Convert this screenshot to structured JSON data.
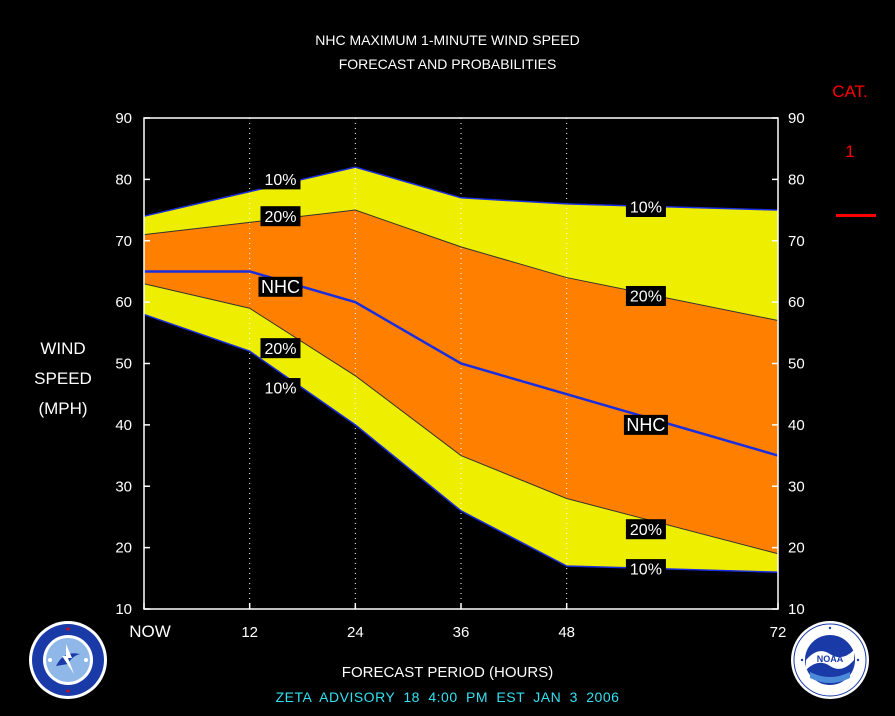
{
  "chart_data": {
    "type": "area",
    "title": "NHC MAXIMUM 1-MINUTE WIND SPEED",
    "subtitle": "FORECAST AND PROBABILITIES",
    "ylabel": [
      "WIND",
      "SPEED",
      "(MPH)"
    ],
    "xlabel": "FORECAST PERIOD (HOURS)",
    "ylim": [
      10,
      90
    ],
    "yticks": [
      10,
      20,
      30,
      40,
      50,
      60,
      70,
      80,
      90
    ],
    "xlim": [
      0,
      72
    ],
    "xticks": [
      0,
      12,
      24,
      36,
      48,
      72
    ],
    "xtick_labels": [
      "NOW",
      "12",
      "24",
      "36",
      "48",
      "72"
    ],
    "vertical_gridlines_dotted": [
      12,
      24,
      36,
      48
    ],
    "x": [
      0,
      12,
      24,
      36,
      48,
      72
    ],
    "series": [
      {
        "name": "10%",
        "role": "upper",
        "values": [
          74,
          78,
          82,
          77,
          76,
          75
        ]
      },
      {
        "name": "20%",
        "role": "upper",
        "values": [
          71,
          73,
          75,
          69,
          64,
          57
        ]
      },
      {
        "name": "NHC",
        "role": "forecast",
        "values": [
          65,
          65,
          60,
          50,
          45,
          35
        ]
      },
      {
        "name": "20%",
        "role": "lower",
        "values": [
          63,
          59,
          48,
          35,
          28,
          19
        ]
      },
      {
        "name": "10%",
        "role": "lower",
        "values": [
          58,
          52,
          40,
          26,
          17,
          16
        ]
      }
    ],
    "band_labels": [
      {
        "text": "10%",
        "x": 15.5,
        "y": 80
      },
      {
        "text": "20%",
        "x": 15.5,
        "y": 74
      },
      {
        "text": "NHC",
        "x": 15.5,
        "y": 62.5
      },
      {
        "text": "20%",
        "x": 15.5,
        "y": 52.5
      },
      {
        "text": "10%",
        "x": 15.5,
        "y": 46
      },
      {
        "text": "10%",
        "x": 57,
        "y": 75.5
      },
      {
        "text": "20%",
        "x": 57,
        "y": 61
      },
      {
        "text": "NHC",
        "x": 57,
        "y": 40
      },
      {
        "text": "20%",
        "x": 57,
        "y": 23
      },
      {
        "text": "10%",
        "x": 57,
        "y": 16.5
      }
    ],
    "colors": {
      "background": "#000000",
      "plot_bg": "#000000",
      "axis": "#ffffff",
      "band_10": "#eeee00",
      "band_20": "#ff8000",
      "nhc_line": "#1a2ee0"
    }
  },
  "category": {
    "title": "CAT.",
    "value": "1",
    "color": "#ff0000"
  },
  "footer": "ZETA   ADVISORY  18  4:00  PM  EST  JAN  3  2006",
  "logos": {
    "left": "nws-logo",
    "right": "noaa-logo"
  }
}
